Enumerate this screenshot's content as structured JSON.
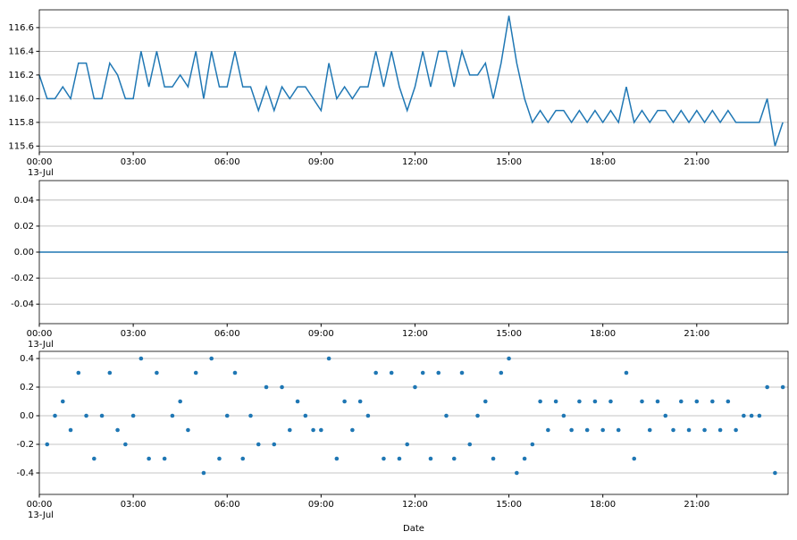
{
  "chart_data": [
    {
      "type": "line",
      "x_sublabel": "13-Jul",
      "x": [
        0,
        15,
        30,
        45,
        60,
        75,
        90,
        105,
        120,
        135,
        150,
        165,
        180,
        195,
        210,
        225,
        240,
        255,
        270,
        285,
        300,
        315,
        330,
        345,
        360,
        375,
        390,
        405,
        420,
        435,
        450,
        465,
        480,
        495,
        510,
        525,
        540,
        555,
        570,
        585,
        600,
        615,
        630,
        645,
        660,
        675,
        690,
        705,
        720,
        735,
        750,
        765,
        780,
        795,
        810,
        825,
        840,
        855,
        870,
        885,
        900,
        915,
        930,
        945,
        960,
        975,
        990,
        1005,
        1020,
        1035,
        1050,
        1065,
        1080,
        1095,
        1110,
        1125,
        1140,
        1155,
        1170,
        1185,
        1200,
        1215,
        1230,
        1245,
        1260,
        1275,
        1290,
        1305,
        1320,
        1335,
        1350,
        1365,
        1380,
        1395,
        1410,
        1425
      ],
      "series": [
        {
          "color": "#1f77b4",
          "values": [
            116.2,
            116.0,
            116.0,
            116.1,
            116.0,
            116.3,
            116.3,
            116.0,
            116.0,
            116.3,
            116.2,
            116.0,
            116.0,
            116.4,
            116.1,
            116.4,
            116.1,
            116.1,
            116.2,
            116.1,
            116.4,
            116.0,
            116.4,
            116.1,
            116.1,
            116.4,
            116.1,
            116.1,
            115.9,
            116.1,
            115.9,
            116.1,
            116.0,
            116.1,
            116.1,
            116.0,
            115.9,
            116.3,
            116.0,
            116.1,
            116.0,
            116.1,
            116.1,
            116.4,
            116.1,
            116.4,
            116.1,
            115.9,
            116.1,
            116.4,
            116.1,
            116.4,
            116.4,
            116.1,
            116.4,
            116.2,
            116.2,
            116.3,
            116.0,
            116.3,
            116.7,
            116.3,
            116.0,
            115.8,
            115.9,
            115.8,
            115.9,
            115.9,
            115.8,
            115.9,
            115.8,
            115.9,
            115.8,
            115.9,
            115.8,
            116.1,
            115.8,
            115.9,
            115.8,
            115.9,
            115.9,
            115.8,
            115.9,
            115.8,
            115.9,
            115.8,
            115.9,
            115.8,
            115.9,
            115.8,
            115.8,
            115.8,
            115.8,
            116.0,
            115.6,
            115.8
          ]
        }
      ],
      "xlim": [
        0,
        1435
      ],
      "xticks": [
        {
          "value": 0,
          "label": "00:00"
        },
        {
          "value": 180,
          "label": "03:00"
        },
        {
          "value": 360,
          "label": "06:00"
        },
        {
          "value": 540,
          "label": "09:00"
        },
        {
          "value": 720,
          "label": "12:00"
        },
        {
          "value": 900,
          "label": "15:00"
        },
        {
          "value": 1080,
          "label": "18:00"
        },
        {
          "value": 1260,
          "label": "21:00"
        }
      ],
      "ylim": [
        115.55,
        116.75
      ],
      "yticks": [
        115.6,
        115.8,
        {
          "value": 116,
          "label": "116.0"
        },
        116.2,
        116.4,
        116.6
      ],
      "grid": true
    },
    {
      "type": "line",
      "x_sublabel": "13-Jul",
      "x": [
        0,
        1435
      ],
      "series": [
        {
          "color": "#1f77b4",
          "values": [
            0,
            0
          ]
        }
      ],
      "xlim": [
        0,
        1435
      ],
      "xticks": [
        {
          "value": 0,
          "label": "00:00"
        },
        {
          "value": 180,
          "label": "03:00"
        },
        {
          "value": 360,
          "label": "06:00"
        },
        {
          "value": 540,
          "label": "09:00"
        },
        {
          "value": 720,
          "label": "12:00"
        },
        {
          "value": 900,
          "label": "15:00"
        },
        {
          "value": 1080,
          "label": "18:00"
        },
        {
          "value": 1260,
          "label": "21:00"
        }
      ],
      "ylim": [
        -0.055,
        0.055
      ],
      "yticks": [
        -0.04,
        -0.02,
        {
          "value": 0,
          "label": "0.00"
        },
        0.02,
        0.04
      ],
      "grid": true
    },
    {
      "type": "scatter",
      "x_sublabel": "13-Jul",
      "xlabel": "Date",
      "x": [
        0,
        15,
        30,
        45,
        60,
        75,
        90,
        105,
        120,
        135,
        150,
        165,
        180,
        195,
        210,
        225,
        240,
        255,
        270,
        285,
        300,
        315,
        330,
        345,
        360,
        375,
        390,
        405,
        420,
        435,
        450,
        465,
        480,
        495,
        510,
        525,
        540,
        555,
        570,
        585,
        600,
        615,
        630,
        645,
        660,
        675,
        690,
        705,
        720,
        735,
        750,
        765,
        780,
        795,
        810,
        825,
        840,
        855,
        870,
        885,
        900,
        915,
        930,
        945,
        960,
        975,
        990,
        1005,
        1020,
        1035,
        1050,
        1065,
        1080,
        1095,
        1110,
        1125,
        1140,
        1155,
        1170,
        1185,
        1200,
        1215,
        1230,
        1245,
        1260,
        1275,
        1290,
        1305,
        1320,
        1335,
        1350,
        1365,
        1380,
        1395,
        1410,
        1425
      ],
      "series": [
        {
          "color": "#1f77b4",
          "values": [
            null,
            -0.2,
            0,
            0.1,
            -0.1,
            0.3,
            0,
            -0.3,
            0,
            0.3,
            -0.1,
            -0.2,
            0,
            0.4,
            -0.3,
            0.3,
            -0.3,
            0,
            0.1,
            -0.1,
            0.3,
            -0.4,
            0.4,
            -0.3,
            0,
            0.3,
            -0.3,
            0,
            -0.2,
            0.2,
            -0.2,
            0.2,
            -0.1,
            0.1,
            0,
            -0.1,
            -0.1,
            0.4,
            -0.3,
            0.1,
            -0.1,
            0.1,
            0,
            0.3,
            -0.3,
            0.3,
            -0.3,
            -0.2,
            0.2,
            0.3,
            -0.3,
            0.3,
            0,
            -0.3,
            0.3,
            -0.2,
            0,
            0.1,
            -0.3,
            0.3,
            0.4,
            -0.4,
            -0.3,
            -0.2,
            0.1,
            -0.1,
            0.1,
            0,
            -0.1,
            0.1,
            -0.1,
            0.1,
            -0.1,
            0.1,
            -0.1,
            0.3,
            -0.3,
            0.1,
            -0.1,
            0.1,
            0,
            -0.1,
            0.1,
            -0.1,
            0.1,
            -0.1,
            0.1,
            -0.1,
            0.1,
            -0.1,
            0,
            0,
            0,
            0.2,
            -0.4,
            0.2
          ]
        }
      ],
      "xlim": [
        0,
        1435
      ],
      "xticks": [
        {
          "value": 0,
          "label": "00:00"
        },
        {
          "value": 180,
          "label": "03:00"
        },
        {
          "value": 360,
          "label": "06:00"
        },
        {
          "value": 540,
          "label": "09:00"
        },
        {
          "value": 720,
          "label": "12:00"
        },
        {
          "value": 900,
          "label": "15:00"
        },
        {
          "value": 1080,
          "label": "18:00"
        },
        {
          "value": 1260,
          "label": "21:00"
        }
      ],
      "ylim": [
        -0.55,
        0.45
      ],
      "yticks": [
        -0.4,
        -0.2,
        {
          "value": 0,
          "label": "0.0"
        },
        0.2,
        0.4
      ],
      "grid": true
    }
  ]
}
